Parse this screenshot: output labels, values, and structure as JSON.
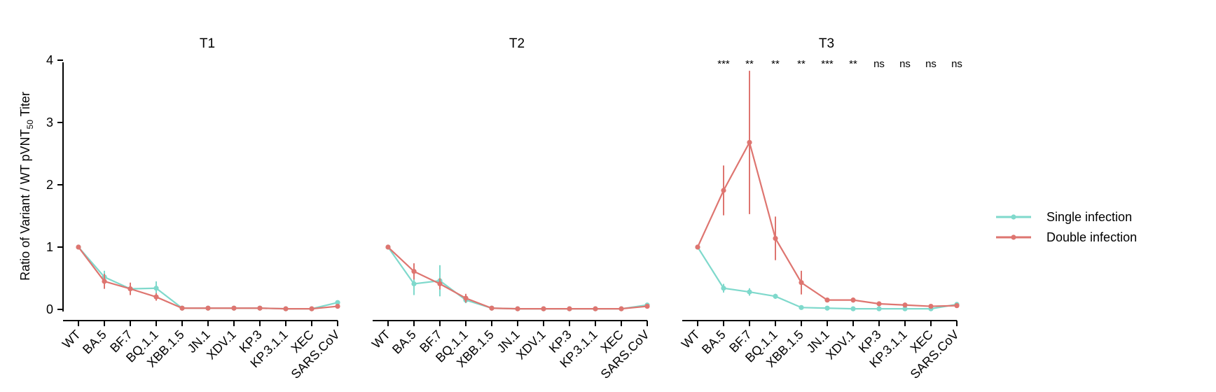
{
  "chart_data": {
    "type": "line",
    "ylabel_main": "Ratio of Variant / WT pVNT",
    "ylabel_sub": "50",
    "ylabel_tail": " Titer",
    "ylim": [
      0,
      4
    ],
    "yticks": [
      0,
      1,
      2,
      3,
      4
    ],
    "categories": [
      "WT",
      "BA.5",
      "BF.7",
      "BQ.1.1",
      "XBB.1.5",
      "JN.1",
      "XDV.1",
      "KP.3",
      "KP.3.1.1",
      "XEC",
      "SARS.CoV"
    ],
    "colors": {
      "single": "#7fd9cc",
      "double": "#de7570",
      "axis": "#000000"
    },
    "legend": {
      "position": "right",
      "entries": [
        {
          "key": "single",
          "label": "Single infection"
        },
        {
          "key": "double",
          "label": "Double infection"
        }
      ]
    },
    "panels": [
      {
        "title": "T1",
        "significance": [],
        "series": [
          {
            "key": "single",
            "values": [
              1.0,
              0.52,
              0.33,
              0.34,
              0.02,
              0.02,
              0.02,
              0.02,
              0.01,
              0.01,
              0.11
            ],
            "err": [
              0,
              0.1,
              0.07,
              0.11,
              0.01,
              0.01,
              0.01,
              0.01,
              0.01,
              0.01,
              0.03
            ]
          },
          {
            "key": "double",
            "values": [
              1.0,
              0.45,
              0.33,
              0.2,
              0.02,
              0.02,
              0.02,
              0.02,
              0.01,
              0.01,
              0.05
            ],
            "err": [
              0,
              0.12,
              0.1,
              0.06,
              0.01,
              0.01,
              0.01,
              0.01,
              0.01,
              0.01,
              0.02
            ]
          }
        ]
      },
      {
        "title": "T2",
        "significance": [],
        "series": [
          {
            "key": "single",
            "values": [
              1.0,
              0.41,
              0.46,
              0.15,
              0.02,
              0.01,
              0.01,
              0.01,
              0.01,
              0.01,
              0.07
            ],
            "err": [
              0,
              0.18,
              0.25,
              0.05,
              0.01,
              0.01,
              0.01,
              0.01,
              0.01,
              0.01,
              0.02
            ]
          },
          {
            "key": "double",
            "values": [
              1.0,
              0.61,
              0.41,
              0.18,
              0.02,
              0.01,
              0.01,
              0.01,
              0.01,
              0.01,
              0.05
            ],
            "err": [
              0,
              0.13,
              0.09,
              0.07,
              0.01,
              0.01,
              0.01,
              0.01,
              0.01,
              0.01,
              0.02
            ]
          }
        ]
      },
      {
        "title": "T3",
        "significance": [
          "",
          "***",
          "**",
          "**",
          "**",
          "***",
          "**",
          "ns",
          "ns",
          "ns",
          "ns"
        ],
        "series": [
          {
            "key": "single",
            "values": [
              1.0,
              0.34,
              0.28,
              0.21,
              0.03,
              0.02,
              0.01,
              0.01,
              0.01,
              0.01,
              0.08
            ],
            "err": [
              0,
              0.07,
              0.06,
              0.04,
              0.01,
              0.01,
              0.01,
              0.01,
              0.01,
              0.01,
              0.02
            ]
          },
          {
            "key": "double",
            "values": [
              1.0,
              1.91,
              2.68,
              1.14,
              0.43,
              0.15,
              0.15,
              0.09,
              0.07,
              0.05,
              0.06
            ],
            "err": [
              0,
              0.4,
              1.15,
              0.35,
              0.19,
              0.03,
              0.04,
              0.02,
              0.02,
              0.02,
              0.02
            ]
          }
        ]
      }
    ]
  }
}
